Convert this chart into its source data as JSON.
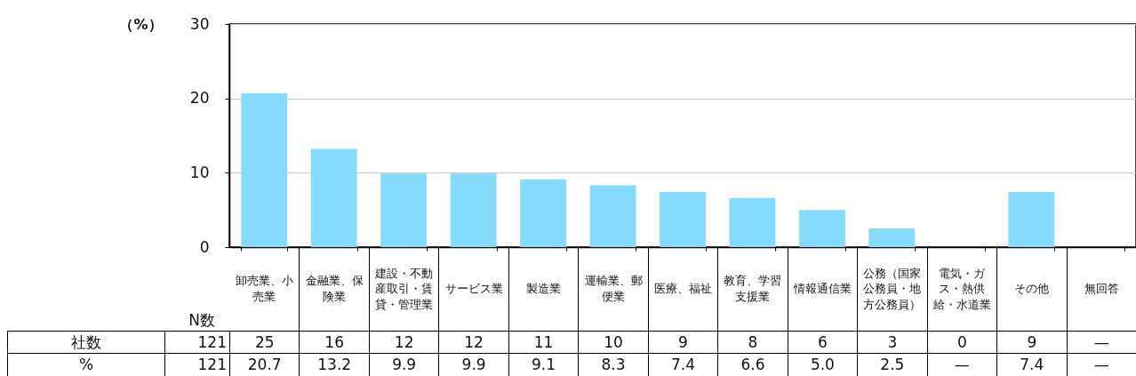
{
  "chart_data": {
    "type": "bar",
    "ylabel": "（%）",
    "categories": [
      "卸売業、小売業",
      "金融業、保険業",
      "建設・不動産取引・賃貸・管理業",
      "サービス業",
      "製造業",
      "運輸業、郵便業",
      "医療、福祉",
      "教育、学習支援業",
      "情報通信業",
      "公務（国家公務員・地方公務員）",
      "電気・ガス・熱供給・水道業",
      "その他",
      "無回答"
    ],
    "series": [
      {
        "name": "%",
        "color": "#86dafc",
        "values": [
          20.7,
          13.2,
          9.9,
          9.9,
          9.1,
          8.3,
          7.4,
          6.6,
          5.0,
          2.5,
          null,
          7.4,
          null
        ],
        "value_labels": [
          "20.7",
          "13.2",
          "9.9",
          "9.9",
          "9.1",
          "8.3",
          "7.4",
          "6.6",
          "5.0",
          "2.5",
          "—",
          "7.4",
          "—"
        ]
      }
    ],
    "ylim": [
      0,
      30
    ],
    "yticks": [
      0,
      10,
      20,
      30
    ],
    "grid": "y",
    "legend": false,
    "annotations": [
      "N数",
      "社数",
      "121",
      "25",
      "16",
      "12",
      "12",
      "11",
      "10",
      "9",
      "8",
      "6",
      "3",
      "0",
      "9",
      "—",
      "121"
    ]
  }
}
